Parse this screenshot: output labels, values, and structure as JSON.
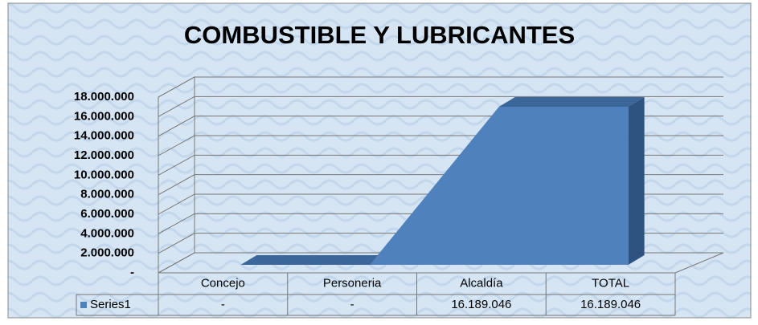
{
  "chart_data": {
    "type": "area3d",
    "title": "COMBUSTIBLE Y LUBRICANTES",
    "categories": [
      "Concejo",
      "Personeria",
      "Alcaldía",
      "TOTAL"
    ],
    "series": [
      {
        "name": "Series1",
        "color": "#4f81bd",
        "values": [
          0,
          0,
          16189046,
          16189046
        ],
        "value_labels": [
          "-",
          "-",
          "16.189.046",
          "16.189.046"
        ]
      }
    ],
    "ylim": [
      0,
      18000000
    ],
    "yticks": [
      {
        "value": 0,
        "label": "-"
      },
      {
        "value": 2000000,
        "label": "2.000.000"
      },
      {
        "value": 4000000,
        "label": "4.000.000"
      },
      {
        "value": 6000000,
        "label": "6.000.000"
      },
      {
        "value": 8000000,
        "label": "8.000.000"
      },
      {
        "value": 10000000,
        "label": "10.000.000"
      },
      {
        "value": 12000000,
        "label": "12.000.000"
      },
      {
        "value": 14000000,
        "label": "14.000.000"
      },
      {
        "value": 16000000,
        "label": "16.000.000"
      },
      {
        "value": 18000000,
        "label": "18.000.000"
      }
    ],
    "grid": true
  }
}
